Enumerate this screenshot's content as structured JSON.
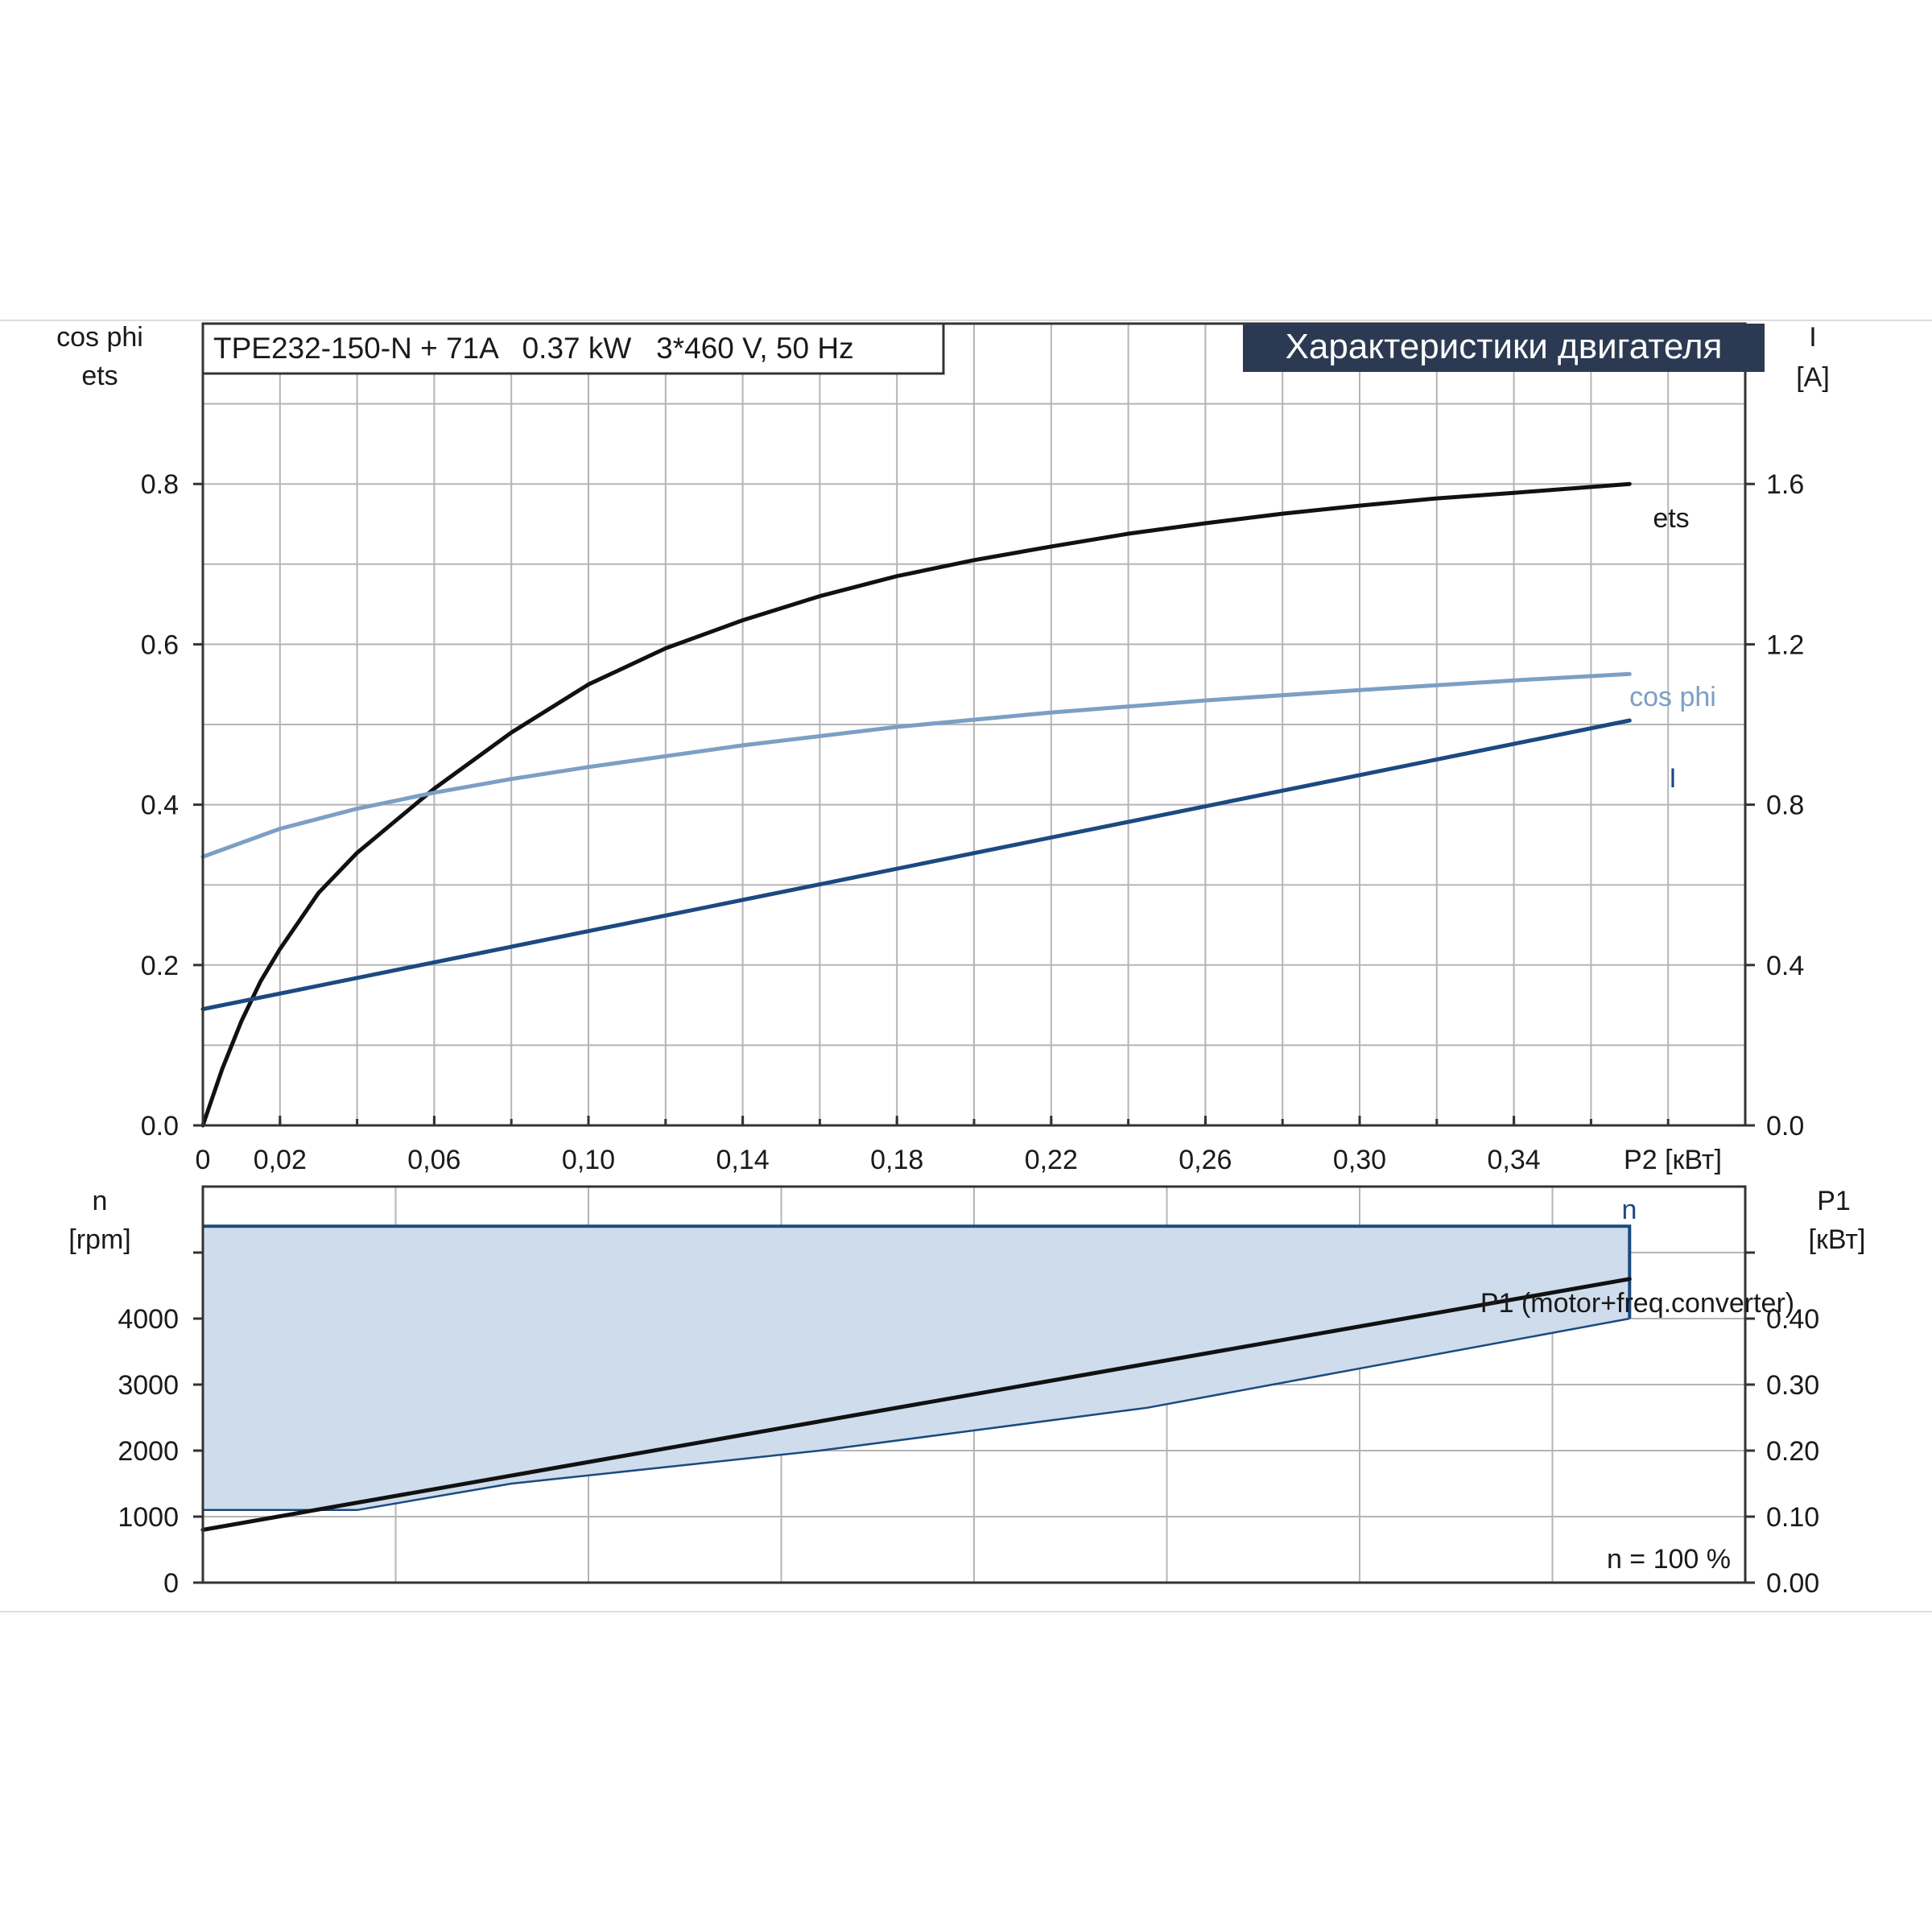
{
  "header": {
    "pump_label": "TPE232-150-N + 71A   0.37 kW   3*460 V, 50 Hz",
    "title_badge": "Характеристики двигателя"
  },
  "colors": {
    "ets": "#111111",
    "cos_phi": "#7c9fc4",
    "current": "#1b4a80",
    "speed": "#1b4a80",
    "speed_fill": "#cfdceb",
    "p1": "#111111",
    "badge_bg": "#2b3a52",
    "badge_text": "#ffffff"
  },
  "chart_data": [
    {
      "type": "line",
      "name": "motor-characteristics",
      "xlabel": "P2 [кВт]",
      "x_ticks": [
        "0",
        "0,02",
        "0,06",
        "0,10",
        "0,14",
        "0,18",
        "0,22",
        "0,26",
        "0,30",
        "0,34"
      ],
      "xlim": [
        0,
        0.4
      ],
      "left_axis": {
        "label_line1": "cos phi",
        "label_line2": "ets",
        "ylim": [
          0,
          1.0
        ],
        "ticks": [
          "0.0",
          "0.2",
          "0.4",
          "0.6",
          "0.8"
        ]
      },
      "right_axis": {
        "label_line1": "I",
        "label_line2": "[A]",
        "ylim": [
          0,
          2.0
        ],
        "ticks": [
          "0.0",
          "0.4",
          "0.8",
          "1.2",
          "1.6"
        ]
      },
      "grid": true,
      "series": [
        {
          "name": "ets",
          "axis": "left",
          "x": [
            0,
            0.005,
            0.01,
            0.015,
            0.02,
            0.03,
            0.04,
            0.05,
            0.06,
            0.08,
            0.1,
            0.12,
            0.14,
            0.16,
            0.18,
            0.2,
            0.22,
            0.24,
            0.26,
            0.28,
            0.3,
            0.32,
            0.34,
            0.37
          ],
          "y": [
            0.0,
            0.07,
            0.13,
            0.18,
            0.22,
            0.29,
            0.34,
            0.38,
            0.42,
            0.49,
            0.55,
            0.595,
            0.63,
            0.66,
            0.685,
            0.705,
            0.722,
            0.738,
            0.751,
            0.763,
            0.773,
            0.782,
            0.789,
            0.8
          ]
        },
        {
          "name": "cos phi",
          "axis": "left",
          "x": [
            0,
            0.02,
            0.04,
            0.06,
            0.08,
            0.1,
            0.14,
            0.18,
            0.22,
            0.26,
            0.3,
            0.34,
            0.37
          ],
          "y": [
            0.335,
            0.37,
            0.395,
            0.415,
            0.432,
            0.447,
            0.474,
            0.497,
            0.515,
            0.53,
            0.543,
            0.555,
            0.563
          ]
        },
        {
          "name": "I",
          "axis": "right",
          "x": [
            0,
            0.37
          ],
          "y": [
            0.29,
            1.01
          ]
        }
      ]
    },
    {
      "type": "area",
      "name": "speed-and-input-power",
      "xlim": [
        0,
        0.4
      ],
      "left_axis": {
        "label_line1": "n",
        "label_line2": "[rpm]",
        "ylim": [
          0,
          6000
        ],
        "ticks": [
          "0",
          "1000",
          "2000",
          "3000",
          "4000"
        ]
      },
      "right_axis": {
        "label_line1": "P1",
        "label_line2": "[кВт]",
        "ylim": [
          0,
          0.6
        ],
        "ticks": [
          "0.00",
          "0.10",
          "0.20",
          "0.30",
          "0.40"
        ]
      },
      "grid": true,
      "series": [
        {
          "name": "n",
          "axis": "left",
          "x": [
            0,
            0.37
          ],
          "y_max": [
            5400,
            5400
          ],
          "y_min_x": [
            0,
            0.04,
            0.08,
            0.16,
            0.245,
            0.37
          ],
          "y_min": [
            1100,
            1100,
            1500,
            2000,
            2650,
            4000
          ]
        },
        {
          "name": "P1 (motor+freq.converter)",
          "axis": "right",
          "x": [
            0,
            0.37
          ],
          "y": [
            0.08,
            0.46
          ]
        }
      ],
      "annotation": "n = 100 %"
    }
  ]
}
